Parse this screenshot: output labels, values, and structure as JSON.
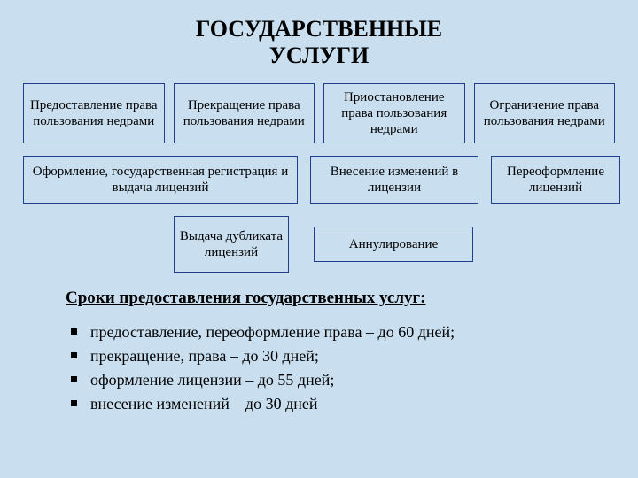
{
  "background_color": "#c9dff0",
  "border_color": "#1f3e8b",
  "text_color": "#000000",
  "title_line1": "ГОСУДАРСТВЕННЫЕ",
  "title_line2": "УСЛУГИ",
  "row1": [
    "Предоставление права пользования недрами",
    "Прекращение права пользования недрами",
    "Приостановление права пользования недрами",
    "Ограничение права пользования недрами"
  ],
  "row2": [
    "Оформление, государственная регистрация и выдача лицензий",
    "Внесение изменений в лицензии",
    "Переоформление лицензий"
  ],
  "row3": [
    "Выдача дубликата лицензий",
    "Аннулирование"
  ],
  "deadlines_heading": "Сроки предоставления государственных услуг:",
  "deadlines": [
    "предоставление, переоформление права – до 60 дней;",
    "прекращение, права – до 30 дней;",
    "оформление лицензии – до 55 дней;",
    "внесение изменений – до 30 дней"
  ]
}
